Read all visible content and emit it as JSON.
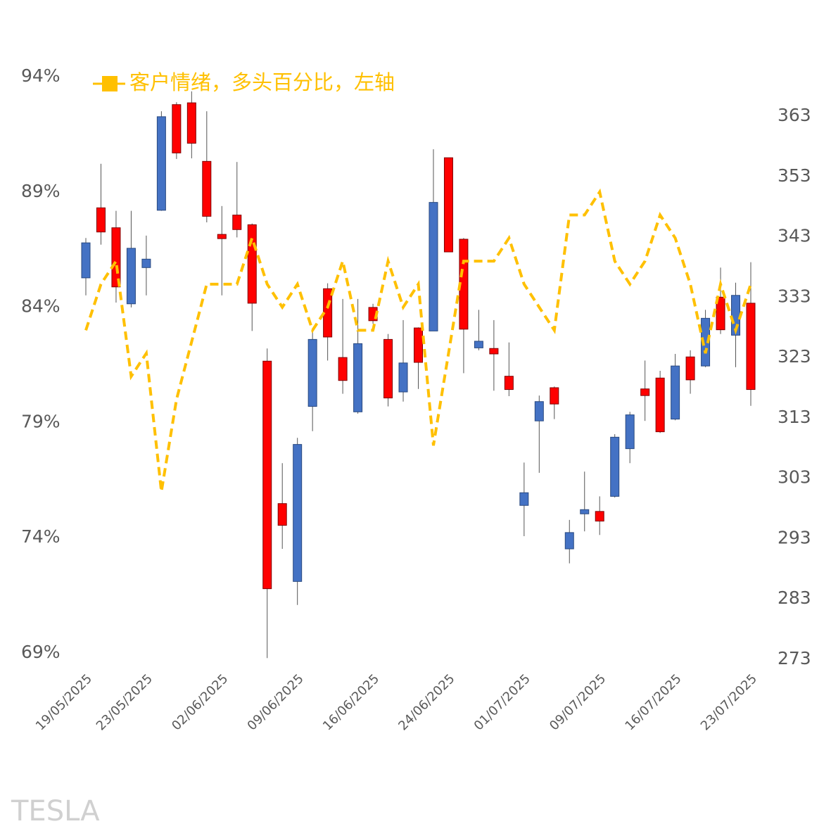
{
  "chart_data": {
    "type": "candlestick",
    "watermark": "TESLA",
    "categories": [
      "19/05/2025",
      null,
      null,
      null,
      "23/05/2025",
      null,
      null,
      null,
      null,
      "02/06/2025",
      null,
      null,
      null,
      null,
      "09/06/2025",
      null,
      null,
      null,
      null,
      "16/06/2025",
      null,
      null,
      null,
      null,
      "24/06/2025",
      null,
      null,
      null,
      null,
      "01/07/2025",
      null,
      null,
      null,
      null,
      "09/07/2025",
      null,
      null,
      null,
      null,
      "16/07/2025",
      null,
      null,
      null,
      null,
      "23/07/2025"
    ],
    "series": [
      {
        "name": "客户情绪，多头百分比，左轴",
        "color": "#FFC000",
        "axis": "y",
        "values": [
          83,
          85,
          86,
          81,
          82,
          76,
          80,
          82.5,
          85,
          85,
          85,
          87,
          85,
          84,
          85,
          83,
          84,
          86,
          83,
          83,
          86,
          84,
          85,
          78,
          82,
          86,
          86,
          86,
          87,
          85,
          84,
          83,
          88,
          88,
          89,
          86,
          85,
          86,
          88,
          87,
          85,
          82,
          85,
          83,
          85
        ]
      }
    ],
    "candles": {
      "axis": "y2",
      "up_color": "#4472C4",
      "down_color": "#FF0000",
      "open": [
        336.2,
        347.8,
        344.5,
        331.9,
        337.9,
        347.4,
        364.9,
        365.2,
        355.5,
        343.4,
        346.6,
        345.0,
        322.4,
        298.8,
        285.9,
        314.9,
        334.4,
        323.0,
        314.0,
        331.3,
        326.0,
        317.3,
        327.9,
        327.4,
        356.1,
        342.6,
        324.6,
        324.5,
        319.9,
        298.5,
        312.5,
        318.0,
        291.3,
        297.1,
        297.5,
        300.0,
        307.9,
        317.8,
        319.6,
        312.8,
        323.1,
        321.6,
        333.0,
        326.7,
        332.0
      ],
      "high": [
        342.8,
        355.1,
        347.3,
        347.3,
        343.2,
        363.8,
        365.3,
        367.1,
        363.8,
        348.1,
        355.4,
        345.2,
        324.5,
        305.5,
        309.7,
        327.8,
        335.3,
        332.7,
        332.7,
        331.9,
        326.9,
        329.2,
        328.0,
        357.5,
        356.1,
        342.8,
        330.9,
        329.2,
        325.5,
        305.6,
        316.7,
        318.2,
        296.1,
        304.1,
        300.0,
        310.3,
        314.0,
        322.5,
        320.8,
        323.6,
        324.2,
        330.9,
        337.9,
        335.4,
        338.8
      ],
      "low": [
        333.3,
        341.7,
        332.1,
        331.3,
        333.3,
        347.3,
        355.9,
        356.0,
        345.4,
        333.3,
        342.9,
        327.4,
        273.2,
        291.3,
        282.0,
        310.8,
        322.5,
        317.0,
        313.7,
        328.6,
        314.9,
        315.7,
        317.8,
        327.4,
        340.5,
        320.4,
        324.2,
        317.5,
        316.6,
        293.4,
        303.9,
        312.8,
        288.9,
        294.2,
        293.6,
        299.8,
        305.5,
        312.5,
        310.5,
        312.6,
        317.0,
        321.4,
        326.9,
        321.4,
        315.0
      ],
      "close": [
        342.0,
        343.8,
        334.7,
        341.1,
        339.3,
        362.9,
        356.9,
        358.5,
        346.4,
        342.7,
        344.2,
        332.0,
        284.7,
        295.2,
        308.6,
        326.0,
        326.4,
        319.2,
        325.3,
        329.1,
        316.3,
        322.1,
        322.2,
        348.7,
        340.5,
        327.7,
        325.7,
        323.6,
        317.7,
        300.6,
        315.7,
        315.3,
        294.0,
        297.8,
        295.9,
        309.8,
        313.5,
        316.7,
        310.7,
        321.6,
        319.3,
        329.5,
        327.6,
        333.3,
        317.7
      ]
    },
    "ylim": [
      69,
      94
    ],
    "yticks": [
      {
        "value": 69,
        "label": "69%"
      },
      {
        "value": 74,
        "label": "74%"
      },
      {
        "value": 79,
        "label": "79%"
      },
      {
        "value": 84,
        "label": "84%"
      },
      {
        "value": 89,
        "label": "89%"
      },
      {
        "value": 94,
        "label": "94%"
      }
    ],
    "y2lim": [
      273,
      363
    ],
    "y2ticks": [
      273,
      283,
      293,
      303,
      313,
      323,
      333,
      343,
      353,
      363
    ]
  }
}
